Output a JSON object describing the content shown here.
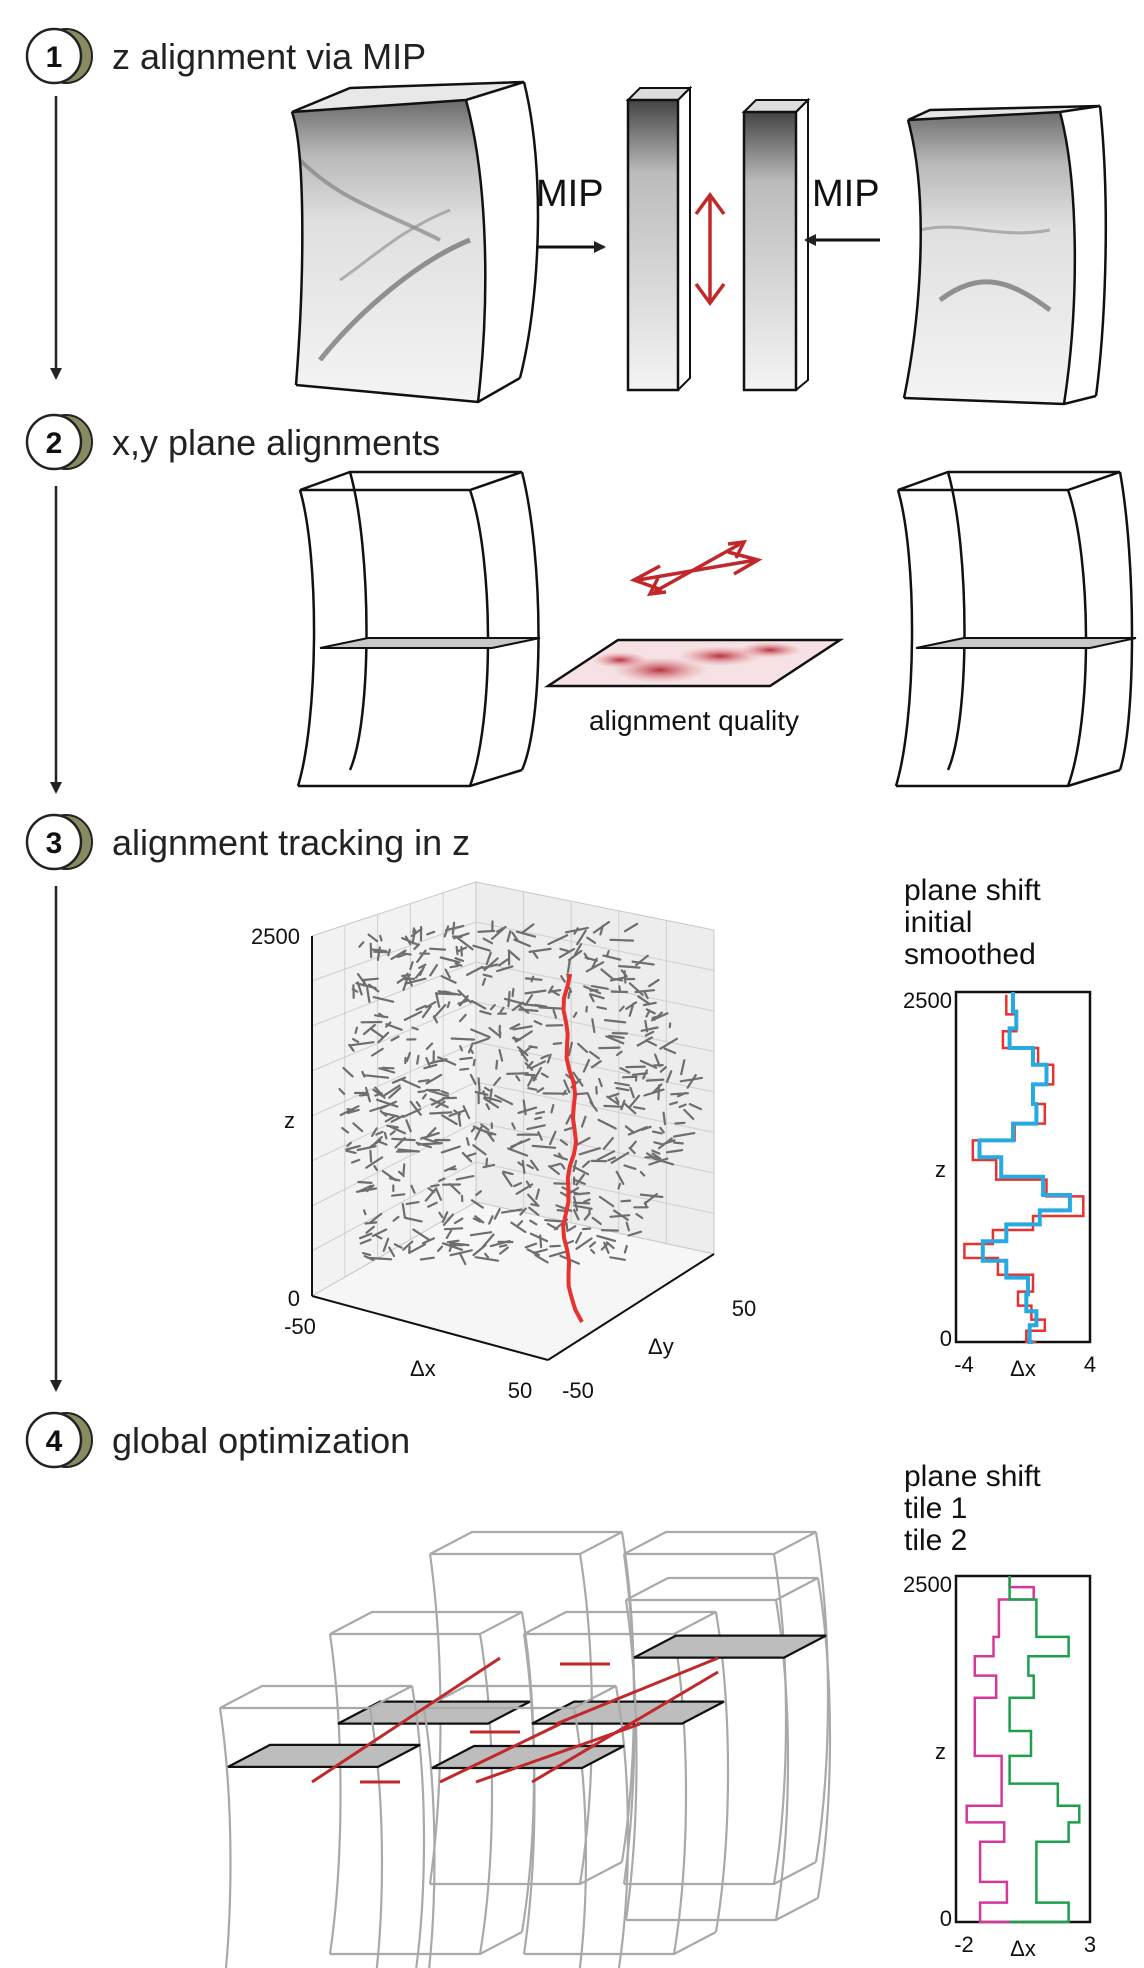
{
  "steps": [
    {
      "number": "1",
      "title": "z alignment via MIP"
    },
    {
      "number": "2",
      "title": "x,y plane alignments"
    },
    {
      "number": "3",
      "title": "alignment tracking in z"
    },
    {
      "number": "4",
      "title": "global optimization"
    }
  ],
  "step1": {
    "mip_left": "MIP",
    "mip_right": "MIP"
  },
  "step2": {
    "quality_label": "alignment quality"
  },
  "step3": {
    "plot3d": {
      "z_label": "z",
      "dx_label": "Δx",
      "dy_label": "Δy",
      "z_ticks": [
        "0",
        "2500"
      ],
      "dx_ticks": [
        "-50",
        "50"
      ],
      "dy_ticks": [
        "-50",
        "50"
      ]
    },
    "legend": {
      "title": "plane shift",
      "initial": "initial",
      "smoothed": "smoothed"
    },
    "colors": {
      "initial": "#e8322e",
      "smoothed": "#27a9e1"
    }
  },
  "step4": {
    "legend": {
      "title": "plane shift",
      "tile1": "tile 1",
      "tile2": "tile 2"
    },
    "colors": {
      "tile1": "#d6389a",
      "tile2": "#1da04b",
      "links": "#c0282a"
    }
  },
  "chart_data": [
    {
      "type": "line",
      "title": "plane shift",
      "xlabel": "Δx",
      "ylabel": "z",
      "xlim": [
        -4,
        4
      ],
      "ylim": [
        0,
        2500
      ],
      "x_ticks": [
        "-4",
        "4"
      ],
      "y_ticks": [
        "0",
        "2500"
      ],
      "series": [
        {
          "name": "initial",
          "points": [
            [
              0.8,
              0
            ],
            [
              0.2,
              80
            ],
            [
              1.3,
              160
            ],
            [
              0.5,
              260
            ],
            [
              -0.3,
              360
            ],
            [
              0.6,
              480
            ],
            [
              -1.5,
              600
            ],
            [
              -3.5,
              700
            ],
            [
              -1.8,
              800
            ],
            [
              0.6,
              900
            ],
            [
              3.6,
              1040
            ],
            [
              1.4,
              1160
            ],
            [
              -1.6,
              1300
            ],
            [
              -3.0,
              1440
            ],
            [
              -0.5,
              1560
            ],
            [
              1.3,
              1700
            ],
            [
              0.6,
              1840
            ],
            [
              1.8,
              1980
            ],
            [
              0.9,
              2100
            ],
            [
              -1.2,
              2220
            ],
            [
              -0.4,
              2340
            ],
            [
              -1.0,
              2480
            ]
          ]
        },
        {
          "name": "smoothed",
          "points": [
            [
              0.6,
              0
            ],
            [
              0.4,
              120
            ],
            [
              0.8,
              220
            ],
            [
              0.2,
              340
            ],
            [
              0.3,
              460
            ],
            [
              -1.0,
              580
            ],
            [
              -2.4,
              720
            ],
            [
              -1.0,
              840
            ],
            [
              1.0,
              940
            ],
            [
              2.8,
              1050
            ],
            [
              1.2,
              1180
            ],
            [
              -1.3,
              1320
            ],
            [
              -2.6,
              1440
            ],
            [
              -0.6,
              1560
            ],
            [
              0.8,
              1700
            ],
            [
              0.6,
              1840
            ],
            [
              1.4,
              1980
            ],
            [
              0.6,
              2100
            ],
            [
              -0.8,
              2240
            ],
            [
              -0.4,
              2360
            ],
            [
              -0.6,
              2500
            ]
          ]
        }
      ]
    },
    {
      "type": "line",
      "title": "plane shift",
      "xlabel": "Δx",
      "ylabel": "z",
      "xlim": [
        -2,
        3
      ],
      "ylim": [
        0,
        2500
      ],
      "x_ticks": [
        "-2",
        "3"
      ],
      "y_ticks": [
        "0",
        "2500"
      ],
      "series": [
        {
          "name": "tile 1",
          "points": [
            [
              0,
              0
            ],
            [
              -1.1,
              140
            ],
            [
              -0.1,
              290
            ],
            [
              -1.1,
              400
            ],
            [
              -1.1,
              580
            ],
            [
              -0.2,
              720
            ],
            [
              -1.6,
              840
            ],
            [
              -0.3,
              1000
            ],
            [
              -0.3,
              1200
            ],
            [
              -1.3,
              1380
            ],
            [
              -1.3,
              1620
            ],
            [
              -0.5,
              1780
            ],
            [
              -1.3,
              1920
            ],
            [
              -0.6,
              2060
            ],
            [
              -0.4,
              2220
            ],
            [
              -0.4,
              2330
            ],
            [
              0.9,
              2420
            ],
            [
              0,
              2500
            ]
          ]
        },
        {
          "name": "tile 2",
          "points": [
            [
              0,
              0
            ],
            [
              2.2,
              140
            ],
            [
              1.0,
              290
            ],
            [
              1.0,
              400
            ],
            [
              1.0,
              580
            ],
            [
              2.2,
              720
            ],
            [
              2.6,
              840
            ],
            [
              1.8,
              1000
            ],
            [
              0,
              1200
            ],
            [
              0.8,
              1380
            ],
            [
              0,
              1620
            ],
            [
              0.9,
              1780
            ],
            [
              0.7,
              1920
            ],
            [
              2.2,
              2060
            ],
            [
              1.0,
              2220
            ],
            [
              1.0,
              2330
            ],
            [
              0,
              2500
            ]
          ]
        }
      ]
    }
  ]
}
